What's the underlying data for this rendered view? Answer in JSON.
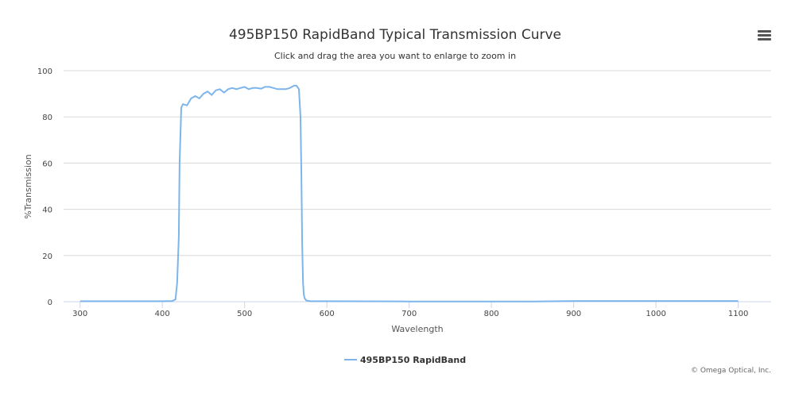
{
  "chart_data": {
    "type": "line",
    "title": "495BP150 RapidBand Typical Transmission Curve",
    "subtitle": "Click and drag the area you want to enlarge to zoom in",
    "xlabel": "Wavelength",
    "ylabel": "%Transmission",
    "xlim": [
      280,
      1140
    ],
    "ylim": [
      0,
      100
    ],
    "x_ticks": [
      300,
      400,
      500,
      600,
      700,
      800,
      900,
      1000,
      1100
    ],
    "y_ticks": [
      0,
      20,
      40,
      60,
      80,
      100
    ],
    "grid": true,
    "legend_position": "bottom-center",
    "series": [
      {
        "name": "495BP150 RapidBand",
        "color": "#7cb5ec",
        "x": [
          300,
          400,
          412,
          416,
          418,
          420,
          421,
          423,
          425,
          430,
          435,
          440,
          445,
          450,
          455,
          460,
          465,
          470,
          475,
          480,
          485,
          490,
          495,
          500,
          505,
          510,
          515,
          520,
          525,
          530,
          535,
          540,
          545,
          550,
          555,
          560,
          563,
          566,
          568,
          569,
          570,
          571,
          572,
          573,
          575,
          580,
          600,
          700,
          800,
          850,
          900,
          1000,
          1100
        ],
        "y": [
          0.2,
          0.2,
          0.3,
          1,
          8,
          28,
          60,
          84,
          85.5,
          85,
          88,
          89,
          88,
          90,
          91,
          89.5,
          91.5,
          92,
          90.5,
          92,
          92.5,
          92,
          92.5,
          93,
          92,
          92.5,
          92.5,
          92.2,
          93,
          93,
          92.5,
          92,
          92,
          92,
          92.5,
          93.5,
          93.5,
          92,
          80,
          55,
          25,
          8,
          3,
          1.5,
          0.5,
          0.2,
          0.2,
          0.1,
          0.1,
          0.1,
          0.3,
          0.3,
          0.3
        ]
      }
    ]
  },
  "credits": "© Omega Optical, Inc.",
  "menu": {
    "icon": "hamburger-menu-icon"
  }
}
